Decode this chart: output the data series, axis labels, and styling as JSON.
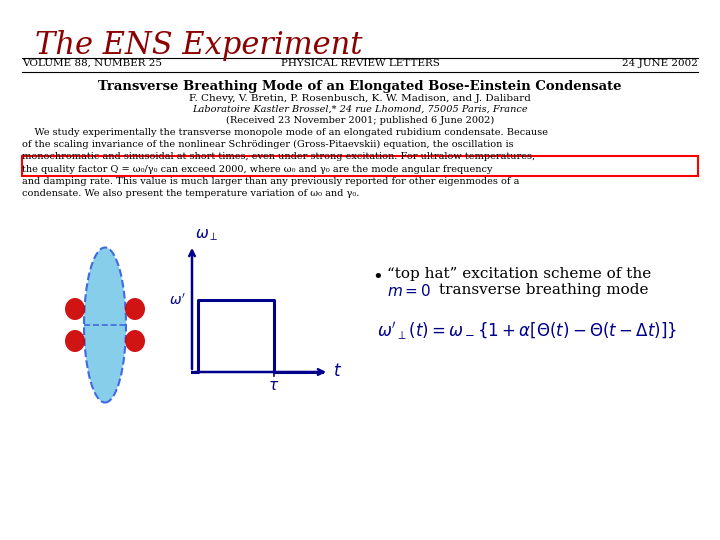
{
  "title": "The ENS Experiment",
  "title_color": "#8B0000",
  "title_fontsize": 22,
  "title_style": "italic",
  "title_font": "serif",
  "journal_left": "VOLUME 88, NUMBER 25",
  "journal_center": "PHYSICAL REVIEW LETTERS",
  "journal_right": "24 JUNE 2002",
  "journal_fontsize": 7.5,
  "paper_title": "Transverse Breathing Mode of an Elongated Bose-Einstein Condensate",
  "paper_authors": "F. Chevy, V. Bretin, P. Rosenbusch, K. W. Madison, and J. Dalibard",
  "paper_affil": "Laboratoire Kastler Brossel,* 24 rue Lhomond, 75005 Paris, France",
  "paper_received": "(Received 23 November 2001; published 6 June 2002)",
  "bullet_text_line1": "“top hat” excitation scheme of the",
  "bullet_text_line2": "transverse breathing mode",
  "dark_blue": "#00008B",
  "light_blue": "#87CEEB",
  "red": "#CC0000",
  "bg_color": "#FFFFFF"
}
